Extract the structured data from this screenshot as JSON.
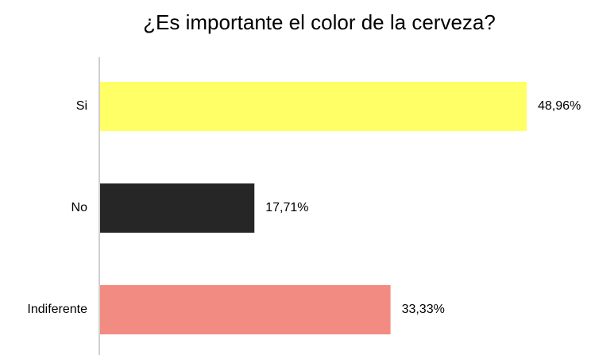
{
  "chart_data": {
    "type": "bar",
    "orientation": "horizontal",
    "title": "¿Es importante el color de la cerveza?",
    "categories": [
      "Si",
      "No",
      "Indiferente"
    ],
    "values": [
      48.96,
      17.71,
      33.33
    ],
    "value_labels": [
      "48,96%",
      "17,71%",
      "33,33%"
    ],
    "colors": [
      "#ffff66",
      "#262626",
      "#f28b82"
    ]
  }
}
